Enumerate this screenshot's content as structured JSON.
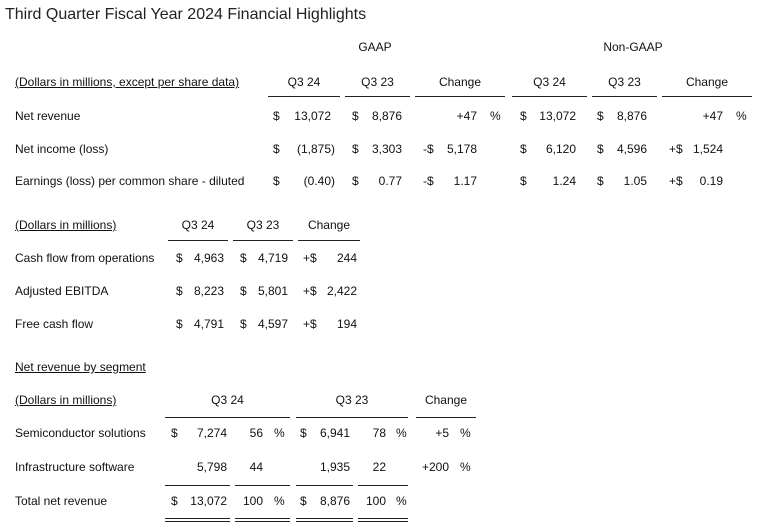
{
  "title": "Third Quarter Fiscal Year 2024 Financial Highlights",
  "sec1": {
    "gaap_label": "GAAP",
    "nongaap_label": "Non-GAAP",
    "header_label": "(Dollars in millions, except per share data)",
    "col_q3_24": "Q3 24",
    "col_q3_23": "Q3 23",
    "col_change": "Change",
    "rows": [
      {
        "label": "Net revenue",
        "g_q24_cur": "$",
        "g_q24": "13,072",
        "g_q23_cur": "$",
        "g_q23": "8,876",
        "g_chg_sign": "",
        "g_chg": "+47",
        "g_chg_pct": "%",
        "n_q24_cur": "$",
        "n_q24": "13,072",
        "n_q23_cur": "$",
        "n_q23": "8,876",
        "n_chg_sign": "",
        "n_chg": "+47",
        "n_chg_pct": "%"
      },
      {
        "label": "Net income (loss)",
        "g_q24_cur": "$",
        "g_q24": "(1,875)",
        "g_q23_cur": "$",
        "g_q23": "3,303",
        "g_chg_sign": "-$",
        "g_chg": "5,178",
        "g_chg_pct": "",
        "n_q24_cur": "$",
        "n_q24": "6,120",
        "n_q23_cur": "$",
        "n_q23": "4,596",
        "n_chg_sign": "+$",
        "n_chg": "1,524",
        "n_chg_pct": ""
      },
      {
        "label": "Earnings (loss) per common share - diluted",
        "g_q24_cur": "$",
        "g_q24": "(0.40)",
        "g_q23_cur": "$",
        "g_q23": "0.77",
        "g_chg_sign": "-$",
        "g_chg": "1.17",
        "g_chg_pct": "",
        "n_q24_cur": "$",
        "n_q24": "1.24",
        "n_q23_cur": "$",
        "n_q23": "1.05",
        "n_chg_sign": "+$",
        "n_chg": "0.19",
        "n_chg_pct": ""
      }
    ]
  },
  "sec2": {
    "header_label": "(Dollars in millions)",
    "col_q3_24": "Q3 24",
    "col_q3_23": "Q3 23",
    "col_change": "Change",
    "rows": [
      {
        "label": "Cash flow from operations",
        "q24_cur": "$",
        "q24": "4,963",
        "q23_cur": "$",
        "q23": "4,719",
        "chg_sign": "+$",
        "chg": "244"
      },
      {
        "label": "Adjusted EBITDA",
        "q24_cur": "$",
        "q24": "8,223",
        "q23_cur": "$",
        "q23": "5,801",
        "chg_sign": "+$",
        "chg": "2,422"
      },
      {
        "label": "Free cash flow",
        "q24_cur": "$",
        "q24": "4,791",
        "q23_cur": "$",
        "q23": "4,597",
        "chg_sign": "+$",
        "chg": "194"
      }
    ]
  },
  "sec3": {
    "segment_title": "Net revenue by segment",
    "header_label": "(Dollars in millions)",
    "col_q3_24": "Q3 24",
    "col_q3_23": "Q3 23",
    "col_change": "Change",
    "rows": [
      {
        "label": "Semiconductor solutions",
        "q24_cur": "$",
        "q24": "7,274",
        "q24_pct": "56",
        "q24_pct_sym": "%",
        "q23_cur": "$",
        "q23": "6,941",
        "q23_pct": "78",
        "q23_pct_sym": "%",
        "chg": "+5",
        "chg_pct": "%"
      },
      {
        "label": "Infrastructure software",
        "q24_cur": "",
        "q24": "5,798",
        "q24_pct": "44",
        "q24_pct_sym": "",
        "q23_cur": "",
        "q23": "1,935",
        "q23_pct": "22",
        "q23_pct_sym": "",
        "chg": "+200",
        "chg_pct": "%"
      },
      {
        "label": "Total net revenue",
        "q24_cur": "$",
        "q24": "13,072",
        "q24_pct": "100",
        "q24_pct_sym": "%",
        "q23_cur": "$",
        "q23": "8,876",
        "q23_pct": "100",
        "q23_pct_sym": "%",
        "chg": "",
        "chg_pct": ""
      }
    ]
  }
}
